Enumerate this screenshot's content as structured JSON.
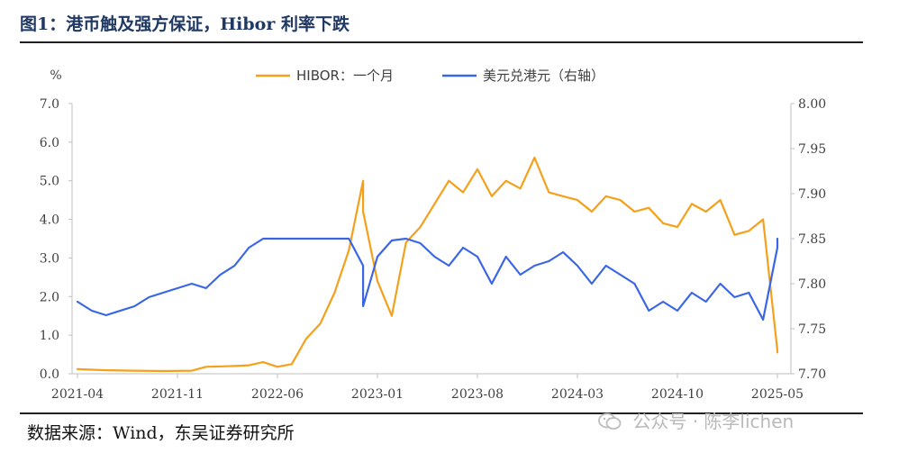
{
  "header": {
    "title": "图1：港币触及强方保证，Hibor 利率下跌"
  },
  "footer": {
    "source": "数据来源：Wind，东吴证券研究所"
  },
  "watermark": {
    "text": "公众号 · 陈李lichen",
    "icon": "wechat-icon"
  },
  "colors": {
    "hibor": "#f5a01a",
    "usdhkd": "#3a66e6",
    "axis": "#bfbfbf",
    "title": "#1f3864"
  },
  "chart_data": {
    "type": "line",
    "title": "",
    "ylabel": "%",
    "y2label": "",
    "legend_position": "top-center",
    "grid": false,
    "ylim": [
      0.0,
      7.0
    ],
    "y2lim": [
      7.7,
      8.0
    ],
    "y_ticks": [
      "0.0",
      "1.0",
      "2.0",
      "3.0",
      "4.0",
      "5.0",
      "6.0",
      "7.0"
    ],
    "y2_ticks": [
      "7.70",
      "7.75",
      "7.80",
      "7.85",
      "7.90",
      "7.95",
      "8.00"
    ],
    "x_ticks": [
      "2021-04",
      "2021-11",
      "2022-06",
      "2023-01",
      "2023-08",
      "2024-03",
      "2024-10",
      "2025-05"
    ],
    "series": [
      {
        "name": "HIBOR：一个月",
        "axis": "left",
        "x": [
          "2021-04",
          "2021-06",
          "2021-08",
          "2021-10",
          "2021-12",
          "2022-01",
          "2022-03",
          "2022-04",
          "2022-05",
          "2022-06",
          "2022-07",
          "2022-08",
          "2022-09",
          "2022-10",
          "2022-11",
          "2022-12",
          "2022-12",
          "2023-01",
          "2023-02",
          "2023-03",
          "2023-04",
          "2023-05",
          "2023-06",
          "2023-07",
          "2023-08",
          "2023-09",
          "2023-10",
          "2023-11",
          "2023-12",
          "2024-01",
          "2024-02",
          "2024-03",
          "2024-04",
          "2024-05",
          "2024-06",
          "2024-07",
          "2024-08",
          "2024-09",
          "2024-10",
          "2024-11",
          "2024-12",
          "2025-01",
          "2025-02",
          "2025-03",
          "2025-04",
          "2025-05",
          "2025-05"
        ],
        "values": [
          0.12,
          0.09,
          0.08,
          0.07,
          0.08,
          0.18,
          0.2,
          0.22,
          0.3,
          0.18,
          0.25,
          0.9,
          1.3,
          2.1,
          3.2,
          5.0,
          4.2,
          2.4,
          1.5,
          3.4,
          3.8,
          4.4,
          5.0,
          4.7,
          5.3,
          4.6,
          5.0,
          4.8,
          5.6,
          4.7,
          4.6,
          4.5,
          4.2,
          4.6,
          4.5,
          4.2,
          4.3,
          3.9,
          3.8,
          4.4,
          4.2,
          4.5,
          3.6,
          3.7,
          4.0,
          0.6,
          0.55
        ]
      },
      {
        "name": "美元兑港元（右轴）",
        "axis": "right",
        "x": [
          "2021-04",
          "2021-05",
          "2021-06",
          "2021-08",
          "2021-09",
          "2021-10",
          "2021-12",
          "2022-01",
          "2022-02",
          "2022-03",
          "2022-04",
          "2022-05",
          "2022-06",
          "2022-08",
          "2022-10",
          "2022-11",
          "2022-12",
          "2022-12",
          "2023-01",
          "2023-02",
          "2023-03",
          "2023-04",
          "2023-05",
          "2023-06",
          "2023-07",
          "2023-08",
          "2023-09",
          "2023-10",
          "2023-11",
          "2023-12",
          "2024-01",
          "2024-02",
          "2024-03",
          "2024-04",
          "2024-05",
          "2024-06",
          "2024-07",
          "2024-08",
          "2024-09",
          "2024-10",
          "2024-11",
          "2024-12",
          "2025-01",
          "2025-02",
          "2025-03",
          "2025-04",
          "2025-05",
          "2025-05"
        ],
        "values": [
          7.78,
          7.77,
          7.765,
          7.775,
          7.785,
          7.79,
          7.8,
          7.795,
          7.81,
          7.82,
          7.84,
          7.85,
          7.85,
          7.85,
          7.85,
          7.85,
          7.82,
          7.775,
          7.83,
          7.848,
          7.85,
          7.845,
          7.83,
          7.82,
          7.84,
          7.83,
          7.8,
          7.83,
          7.81,
          7.82,
          7.825,
          7.835,
          7.82,
          7.8,
          7.82,
          7.81,
          7.8,
          7.77,
          7.78,
          7.77,
          7.79,
          7.78,
          7.8,
          7.785,
          7.79,
          7.76,
          7.84,
          7.85
        ]
      }
    ]
  }
}
